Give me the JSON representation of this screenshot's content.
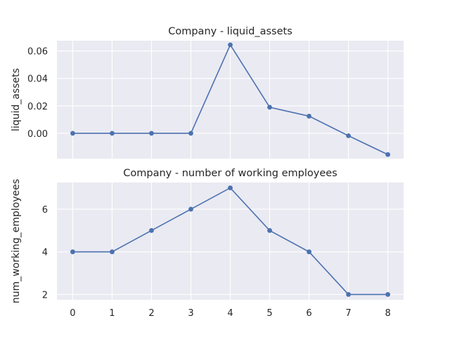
{
  "chart_data": [
    {
      "type": "line",
      "title": "Company - liquid_assets",
      "xlabel": "",
      "ylabel": "liquid_assets",
      "x": [
        0,
        1,
        2,
        3,
        4,
        5,
        6,
        7,
        8
      ],
      "series": [
        {
          "values": [
            0.0,
            0.0,
            0.0,
            0.0,
            0.0645,
            0.019,
            0.0125,
            -0.0018,
            -0.0155
          ]
        }
      ],
      "xlim": [
        -0.4,
        8.4
      ],
      "ylim": [
        -0.0185,
        0.0675
      ],
      "yticks": [
        0.0,
        0.02,
        0.04,
        0.06
      ],
      "ytick_labels": [
        "0.00",
        "0.02",
        "0.04",
        "0.06"
      ],
      "xticks": [
        0,
        1,
        2,
        3,
        4,
        5,
        6,
        7,
        8
      ],
      "show_xtick_labels": false,
      "grid": true,
      "color": "#4c72b0",
      "background": "#eaeaf2"
    },
    {
      "type": "line",
      "title": "Company - number of working employees",
      "xlabel": "",
      "ylabel": "num_working_employees",
      "x": [
        0,
        1,
        2,
        3,
        4,
        5,
        6,
        7,
        8
      ],
      "series": [
        {
          "values": [
            4,
            4,
            5,
            6,
            7,
            5,
            4,
            2,
            2
          ]
        }
      ],
      "xlim": [
        -0.4,
        8.4
      ],
      "ylim": [
        1.75,
        7.25
      ],
      "yticks": [
        2,
        4,
        6
      ],
      "ytick_labels": [
        "2",
        "4",
        "6"
      ],
      "xticks": [
        0,
        1,
        2,
        3,
        4,
        5,
        6,
        7,
        8
      ],
      "xtick_labels": [
        "0",
        "1",
        "2",
        "3",
        "4",
        "5",
        "6",
        "7",
        "8"
      ],
      "show_xtick_labels": true,
      "grid": true,
      "color": "#4c72b0",
      "background": "#eaeaf2"
    }
  ]
}
